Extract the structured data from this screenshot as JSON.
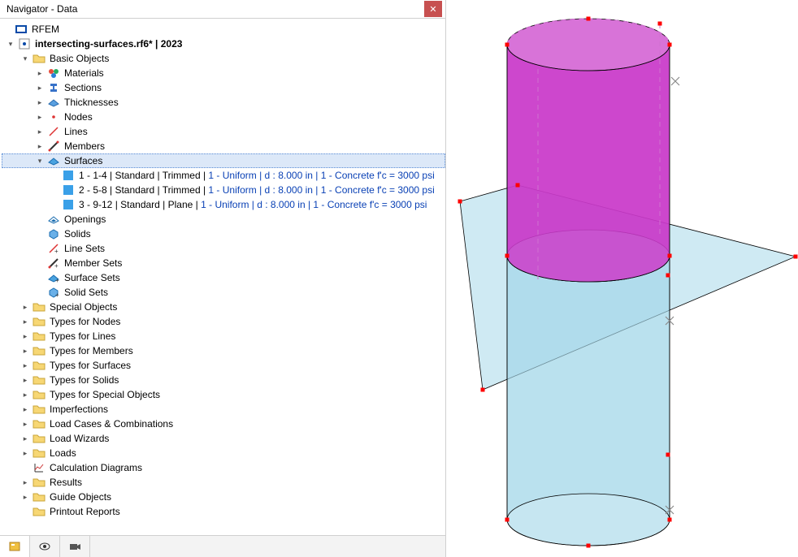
{
  "window": {
    "title": "Navigator - Data"
  },
  "tree": {
    "root": "RFEM",
    "file": "intersecting-surfaces.rf6* | 2023",
    "basic_objects": "Basic Objects",
    "materials": "Materials",
    "sections": "Sections",
    "thicknesses": "Thicknesses",
    "nodes": "Nodes",
    "lines": "Lines",
    "members": "Members",
    "surfaces": "Surfaces",
    "surf1_a": "1 - 1-4 | Standard | Trimmed | ",
    "surf1_b": "1 - Uniform | d : 8.000 in | 1 - Concrete f'c = 3000 psi",
    "surf2_a": "2 - 5-8 | Standard | Trimmed | ",
    "surf2_b": "1 - Uniform | d : 8.000 in | 1 - Concrete f'c = 3000 psi",
    "surf3_a": "3 - 9-12 | Standard | Plane | ",
    "surf3_b": "1 - Uniform | d : 8.000 in | 1 - Concrete f'c = 3000 psi",
    "openings": "Openings",
    "solids": "Solids",
    "line_sets": "Line Sets",
    "member_sets": "Member Sets",
    "surface_sets": "Surface Sets",
    "solid_sets": "Solid Sets",
    "special_objects": "Special Objects",
    "types_nodes": "Types for Nodes",
    "types_lines": "Types for Lines",
    "types_members": "Types for Members",
    "types_surfaces": "Types for Surfaces",
    "types_solids": "Types for Solids",
    "types_special": "Types for Special Objects",
    "imperfections": "Imperfections",
    "load_cases": "Load Cases & Combinations",
    "load_wizards": "Load Wizards",
    "loads": "Loads",
    "calc_diagrams": "Calculation Diagrams",
    "results": "Results",
    "guide_objects": "Guide Objects",
    "printout": "Printout Reports"
  },
  "viewport": {
    "cylinder_top_color": "#c93ac9",
    "cylinder_top_opacity": 0.85,
    "cylinder_bottom_color": "#a7d8ea",
    "cylinder_bottom_opacity": 0.65,
    "plane_color": "#a7d8ea",
    "plane_opacity": 0.55,
    "stroke_color": "#000000",
    "node_color": "#ff0000",
    "dash_color": "#d070d0",
    "cross_color": "#888888"
  }
}
